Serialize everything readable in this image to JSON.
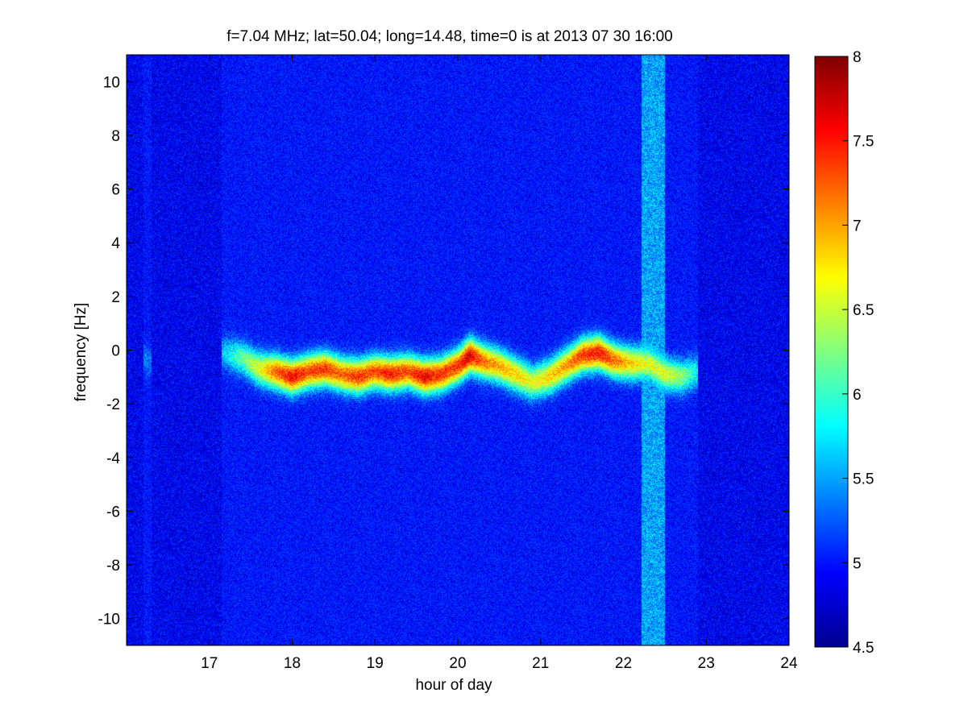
{
  "chart_data": {
    "type": "heatmap",
    "title": "f=7.04 MHz;  lat=50.04; long=14.48, time=0 is at 2013 07 30 16:00",
    "xlabel": "hour of day",
    "ylabel": "frequency [Hz]",
    "xlim": [
      16,
      24
    ],
    "ylim": [
      -11,
      11
    ],
    "x_ticks": [
      17,
      18,
      19,
      20,
      21,
      22,
      23,
      24
    ],
    "y_ticks": [
      -10,
      -8,
      -6,
      -4,
      -2,
      0,
      2,
      4,
      6,
      8,
      10
    ],
    "colorbar": {
      "range": [
        4.5,
        8
      ],
      "ticks": [
        "4.5",
        "5",
        "5.5",
        "6",
        "6.5",
        "7",
        "7.5",
        "8"
      ],
      "colormap": "jet"
    },
    "background_level": 4.9,
    "ridge": {
      "description_level": "peak intensity along Doppler trace",
      "x": [
        16.2,
        16.3,
        17.15,
        17.4,
        17.6,
        17.8,
        18.0,
        18.2,
        18.4,
        18.6,
        18.8,
        19.0,
        19.2,
        19.4,
        19.6,
        19.8,
        20.0,
        20.15,
        20.3,
        20.5,
        20.7,
        20.9,
        21.1,
        21.3,
        21.5,
        21.7,
        21.9,
        22.1,
        22.3,
        22.5,
        22.7,
        22.9
      ],
      "y": [
        -0.3,
        -0.5,
        -0.1,
        -0.3,
        -0.7,
        -0.8,
        -1.0,
        -0.8,
        -0.7,
        -0.9,
        -1.0,
        -0.8,
        -0.9,
        -0.8,
        -1.0,
        -0.9,
        -0.6,
        -0.2,
        -0.4,
        -0.6,
        -0.9,
        -1.2,
        -1.0,
        -0.6,
        -0.2,
        -0.1,
        -0.4,
        -0.5,
        -0.5,
        -0.9,
        -1.0,
        -0.8
      ],
      "z": [
        5.4,
        5.3,
        5.6,
        6.2,
        6.6,
        7.2,
        7.6,
        7.3,
        7.4,
        7.2,
        7.4,
        7.3,
        7.5,
        7.3,
        7.6,
        7.4,
        7.4,
        7.7,
        7.2,
        7.0,
        6.8,
        6.6,
        6.8,
        7.0,
        7.4,
        7.5,
        7.2,
        6.8,
        6.6,
        6.6,
        6.3,
        5.8
      ]
    },
    "noise_band": {
      "x_range": [
        22.22,
        22.5
      ],
      "level": 5.5
    },
    "colors": {
      "axis": "#000000",
      "background": "#ffffff"
    }
  }
}
